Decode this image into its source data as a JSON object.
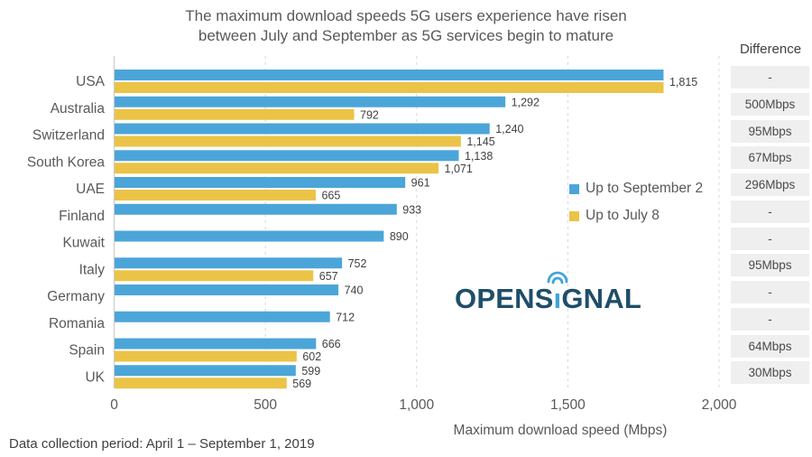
{
  "title": {
    "line1": "The maximum download speeds 5G users experience have risen",
    "line2": "between July and September as 5G services begin to mature"
  },
  "difference_header": "Difference",
  "legend": {
    "items": [
      {
        "label": "Up to September 2",
        "color": "#4BA5D9"
      },
      {
        "label": "Up to July 8",
        "color": "#EBC347"
      }
    ]
  },
  "logo": {
    "pre": "OPENS",
    "i": "ı",
    "post": "GNAL"
  },
  "footnote": "Data collection period: April 1 – September 1, 2019",
  "colors": {
    "september": "#4BA5D9",
    "july": "#EBC347",
    "diff_box": "#EFEFEF",
    "text_dark": "#414042",
    "text_gray": "#58595B",
    "grid": "#D8D8D8",
    "axis": "#CCCCCC",
    "logo_navy": "#1F4E69",
    "logo_blue": "#3FA4DB"
  },
  "chart_data": {
    "type": "bar",
    "orientation": "horizontal",
    "title": "The maximum download speeds 5G users experience have risen between July and September as 5G services begin to mature",
    "xlabel": "Maximum download speed (Mbps)",
    "ylabel": "",
    "xlim": [
      0,
      2000
    ],
    "grid": "dashed-vertical",
    "legend_position": "middle-right",
    "xticks": [
      {
        "value": 0,
        "label": "0"
      },
      {
        "value": 500,
        "label": "500"
      },
      {
        "value": 1000,
        "label": "1,000"
      },
      {
        "value": 1500,
        "label": "1,500"
      },
      {
        "value": 2000,
        "label": "2,000"
      }
    ],
    "series_names": [
      "Up to September 2",
      "Up to July 8"
    ],
    "rows": [
      {
        "country": "USA",
        "sep": 1815,
        "sep_label": "1,815",
        "jul": 1815,
        "jul_label": null,
        "diff": "-"
      },
      {
        "country": "Australia",
        "sep": 1292,
        "sep_label": "1,292",
        "jul": 792,
        "jul_label": "792",
        "diff": "500Mbps"
      },
      {
        "country": "Switzerland",
        "sep": 1240,
        "sep_label": "1,240",
        "jul": 1145,
        "jul_label": "1,145",
        "diff": "95Mbps"
      },
      {
        "country": "South Korea",
        "sep": 1138,
        "sep_label": "1,138",
        "jul": 1071,
        "jul_label": "1,071",
        "diff": "67Mbps"
      },
      {
        "country": "UAE",
        "sep": 961,
        "sep_label": "961",
        "jul": 665,
        "jul_label": "665",
        "diff": "296Mbps"
      },
      {
        "country": "Finland",
        "sep": 933,
        "sep_label": "933",
        "jul": null,
        "jul_label": null,
        "diff": "-"
      },
      {
        "country": "Kuwait",
        "sep": 890,
        "sep_label": "890",
        "jul": null,
        "jul_label": null,
        "diff": "-"
      },
      {
        "country": "Italy",
        "sep": 752,
        "sep_label": "752",
        "jul": 657,
        "jul_label": "657",
        "diff": "95Mbps"
      },
      {
        "country": "Germany",
        "sep": 740,
        "sep_label": "740",
        "jul": null,
        "jul_label": null,
        "diff": "-"
      },
      {
        "country": "Romania",
        "sep": 712,
        "sep_label": "712",
        "jul": null,
        "jul_label": null,
        "diff": "-"
      },
      {
        "country": "Spain",
        "sep": 666,
        "sep_label": "666",
        "jul": 602,
        "jul_label": "602",
        "diff": "64Mbps"
      },
      {
        "country": "UK",
        "sep": 599,
        "sep_label": "599",
        "jul": 569,
        "jul_label": "569",
        "diff": "30Mbps"
      }
    ]
  }
}
